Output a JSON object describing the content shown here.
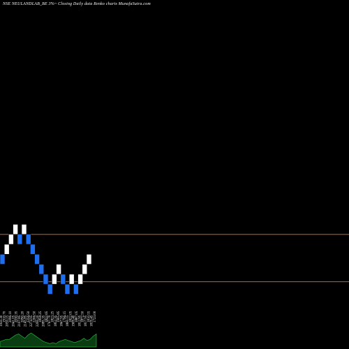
{
  "chart_data": {
    "type": "renko",
    "title": "NSE NEULANDLAB_BE 3%~  Closing Daily data  Renko  charts MunafaSutra.com",
    "colors": {
      "background": "#000000",
      "up_brick": "#ffffff",
      "down_brick": "#1e6ef0",
      "reference_line": "#c8641e",
      "volume_fill": "#0b3d12",
      "volume_edge": "#27b43a"
    },
    "reference_lines": [
      1450,
      1355
    ],
    "price_range": [
      1220,
      1920
    ],
    "bricks": [
      {
        "price": 1400,
        "dir": "down"
      },
      {
        "price": 1420,
        "dir": "up"
      },
      {
        "price": 1440,
        "dir": "up"
      },
      {
        "price": 1460,
        "dir": "up"
      },
      {
        "price": 1440,
        "dir": "down"
      },
      {
        "price": 1460,
        "dir": "up"
      },
      {
        "price": 1440,
        "dir": "down"
      },
      {
        "price": 1420,
        "dir": "down"
      },
      {
        "price": 1400,
        "dir": "down"
      },
      {
        "price": 1380,
        "dir": "down"
      },
      {
        "price": 1360,
        "dir": "down"
      },
      {
        "price": 1340,
        "dir": "down"
      },
      {
        "price": 1360,
        "dir": "up"
      },
      {
        "price": 1380,
        "dir": "up"
      },
      {
        "price": 1360,
        "dir": "down"
      },
      {
        "price": 1340,
        "dir": "down"
      },
      {
        "price": 1360,
        "dir": "up"
      },
      {
        "price": 1340,
        "dir": "down"
      },
      {
        "price": 1360,
        "dir": "up"
      },
      {
        "price": 1380,
        "dir": "up"
      },
      {
        "price": 1400,
        "dir": "up"
      }
    ],
    "volume_labels": [
      "1950.30",
      "1910.70",
      "2050.15",
      "2096.10",
      "2041.05",
      "2030.35",
      "2107.85",
      "2090.20",
      "2145.85",
      "2256.50",
      "2274.95",
      "2206.50",
      "2200.10",
      "1858.25",
      "2085.35",
      "1822.65",
      "1747.70",
      "1823.25",
      "1852.35",
      "1905.85",
      "1847.95",
      "1796.15",
      "1800.15",
      "1822.05",
      "1909.40",
      "1887.05",
      "1812.95",
      "1872.50",
      "1817.95",
      "1810.55",
      "1819.45",
      "1723.00"
    ],
    "volume_values": [
      5,
      6,
      7,
      7,
      9,
      11,
      12,
      10,
      8,
      11,
      13,
      11,
      9,
      7,
      5,
      4,
      3,
      4,
      3,
      5,
      6,
      7,
      6,
      5,
      4,
      5,
      6,
      8,
      6,
      7,
      10,
      12
    ]
  }
}
